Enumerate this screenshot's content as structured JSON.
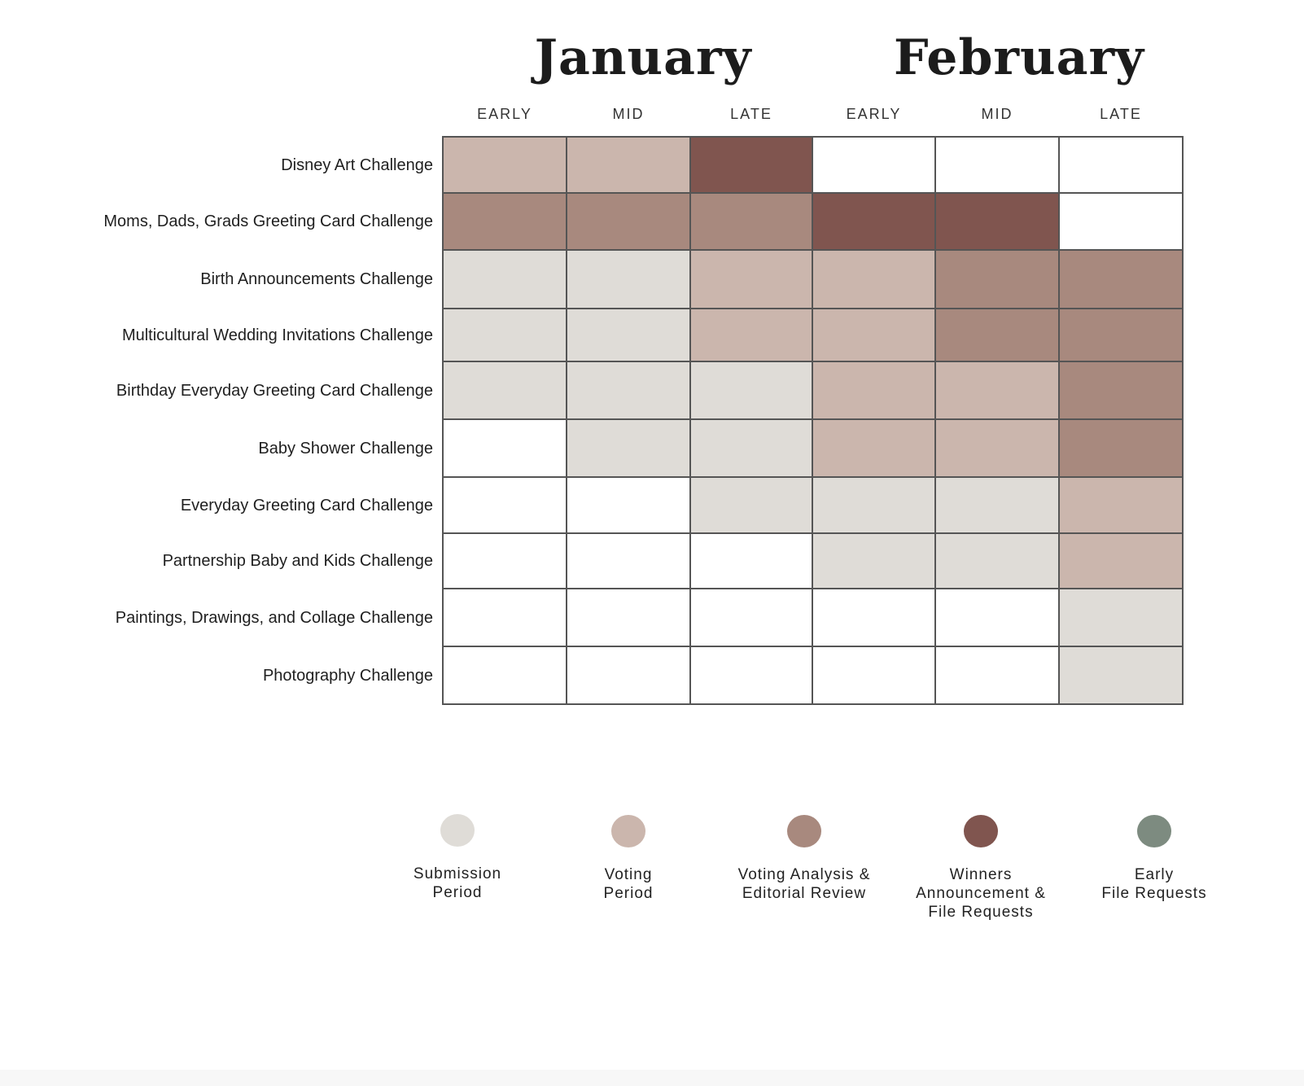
{
  "chart_data": {
    "type": "table",
    "months": [
      "January",
      "February"
    ],
    "columns": [
      "EARLY",
      "MID",
      "LATE",
      "EARLY",
      "MID",
      "LATE"
    ],
    "rows": [
      {
        "label": "Disney Art Challenge",
        "cells": [
          "voting",
          "voting",
          "winners",
          "",
          "",
          ""
        ]
      },
      {
        "label": "Moms, Dads, Grads Greeting Card Challenge",
        "cells": [
          "analysis",
          "analysis",
          "analysis",
          "winners",
          "winners",
          ""
        ]
      },
      {
        "label": "Birth Announcements Challenge",
        "cells": [
          "submission",
          "submission",
          "voting",
          "voting",
          "analysis",
          "analysis"
        ]
      },
      {
        "label": "Multicultural Wedding Invitations Challenge",
        "cells": [
          "submission",
          "submission",
          "voting",
          "voting",
          "analysis",
          "analysis"
        ]
      },
      {
        "label": "Birthday Everyday Greeting Card Challenge",
        "cells": [
          "submission",
          "submission",
          "submission",
          "voting",
          "voting",
          "analysis"
        ]
      },
      {
        "label": "Baby Shower Challenge",
        "cells": [
          "",
          "submission",
          "submission",
          "voting",
          "voting",
          "analysis"
        ]
      },
      {
        "label": "Everyday Greeting Card Challenge",
        "cells": [
          "",
          "",
          "submission",
          "submission",
          "submission",
          "voting"
        ]
      },
      {
        "label": "Partnership Baby and Kids Challenge",
        "cells": [
          "",
          "",
          "",
          "submission",
          "submission",
          "voting"
        ]
      },
      {
        "label": "Paintings, Drawings, and Collage Challenge",
        "cells": [
          "",
          "",
          "",
          "",
          "",
          "submission"
        ]
      },
      {
        "label": "Photography Challenge",
        "cells": [
          "",
          "",
          "",
          "",
          "",
          "submission"
        ]
      }
    ],
    "legend": [
      {
        "key": "submission",
        "lines": [
          "Submission",
          "Period"
        ],
        "color": "#dfdcd7"
      },
      {
        "key": "voting",
        "lines": [
          "Voting",
          "Period"
        ],
        "color": "#cbb6ad"
      },
      {
        "key": "analysis",
        "lines": [
          "Voting Analysis &",
          "Editorial Review"
        ],
        "color": "#a8897e"
      },
      {
        "key": "winners",
        "lines": [
          "Winners",
          "Announcement &",
          "File Requests"
        ],
        "color": "#80554f"
      },
      {
        "key": "early",
        "lines": [
          "Early",
          "File Requests"
        ],
        "color": "#7d8b80"
      }
    ]
  }
}
